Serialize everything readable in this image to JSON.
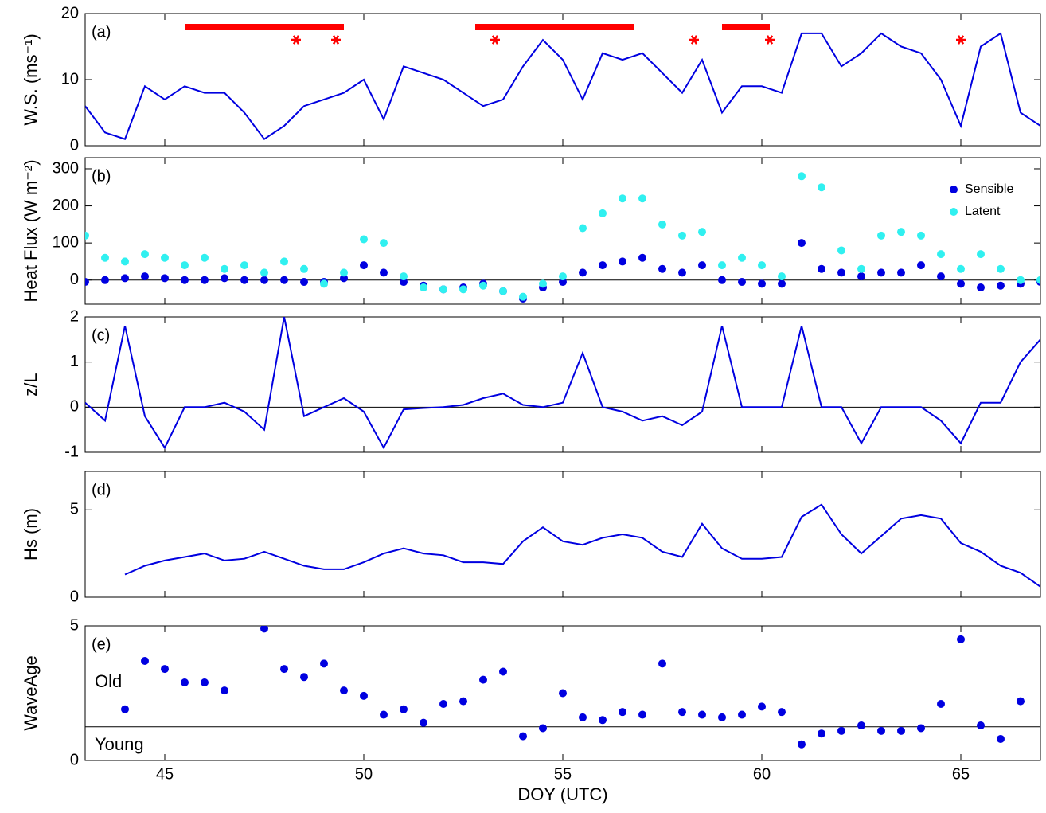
{
  "chart_data": [
    {
      "type": "line",
      "panel_label": "(a)",
      "y_label": "W.S. (ms⁻¹)",
      "xlim": [
        43,
        67
      ],
      "xticks": [
        45,
        50,
        55,
        60,
        65
      ],
      "ylim": [
        0,
        20
      ],
      "yticks": [
        0,
        10,
        20
      ],
      "x": [
        43,
        43.5,
        44,
        44.5,
        45,
        45.5,
        46,
        46.5,
        47,
        47.5,
        48,
        48.5,
        49,
        49.5,
        50,
        50.5,
        51,
        51.5,
        52,
        52.5,
        53,
        53.5,
        54,
        54.5,
        55,
        55.5,
        56,
        56.5,
        57,
        57.5,
        58,
        58.5,
        59,
        59.5,
        60,
        60.5,
        61,
        61.5,
        62,
        62.5,
        63,
        63.5,
        64,
        64.5,
        65,
        65.5,
        66,
        66.5,
        67
      ],
      "series": [
        {
          "color": "#0000e0",
          "values": [
            6,
            2,
            1,
            9,
            7,
            9,
            8,
            8,
            5,
            1,
            3,
            6,
            7,
            8,
            10,
            4,
            12,
            11,
            10,
            8,
            6,
            7,
            12,
            16,
            13,
            7,
            14,
            13,
            14,
            11,
            8,
            13,
            5,
            9,
            9,
            8,
            17,
            17,
            12,
            14,
            17,
            15,
            14,
            10,
            3,
            15,
            17,
            5,
            3
          ]
        }
      ],
      "highlight_periods": [
        [
          45.5,
          49.5
        ],
        [
          52.8,
          56.8
        ],
        [
          59.0,
          60.2
        ]
      ],
      "highlight_color": "#ff0000",
      "event_markers": [
        48.3,
        49.3,
        53.3,
        58.3,
        60.2,
        65.0
      ]
    },
    {
      "type": "scatter",
      "panel_label": "(b)",
      "y_label": "Heat Flux (W m⁻²)",
      "xlim": [
        43,
        67
      ],
      "xticks": [
        45,
        50,
        55,
        60,
        65
      ],
      "ylim": [
        -65,
        330
      ],
      "yticks": [
        0,
        100,
        200,
        300
      ],
      "reference_line": 0,
      "legend": "upper right",
      "x": [
        43,
        43.5,
        44,
        44.5,
        45,
        45.5,
        46,
        46.5,
        47,
        47.5,
        48,
        48.5,
        49,
        49.5,
        50,
        50.5,
        51,
        51.5,
        52,
        52.5,
        53,
        53.5,
        54,
        54.5,
        55,
        55.5,
        56,
        56.5,
        57,
        57.5,
        58,
        58.5,
        59,
        59.5,
        60,
        60.5,
        61,
        61.5,
        62,
        62.5,
        63,
        63.5,
        64,
        64.5,
        65,
        65.5,
        66,
        66.5,
        67
      ],
      "series": [
        {
          "name": "Sensible",
          "color": "#0000e0",
          "values": [
            -5,
            0,
            5,
            10,
            5,
            0,
            0,
            5,
            0,
            0,
            0,
            -5,
            -5,
            5,
            40,
            20,
            -5,
            -15,
            -25,
            -20,
            -10,
            -30,
            -50,
            -20,
            -5,
            20,
            40,
            50,
            60,
            30,
            20,
            40,
            0,
            -5,
            -10,
            -10,
            100,
            30,
            20,
            10,
            20,
            20,
            40,
            10,
            -10,
            -20,
            -15,
            -10,
            -5
          ]
        },
        {
          "name": "Latent",
          "color": "#30f0f0",
          "values": [
            120,
            60,
            50,
            70,
            60,
            40,
            60,
            30,
            40,
            20,
            50,
            30,
            -10,
            20,
            110,
            100,
            10,
            -20,
            -25,
            -25,
            -15,
            -30,
            -45,
            -10,
            10,
            140,
            180,
            220,
            220,
            150,
            120,
            130,
            40,
            60,
            40,
            10,
            280,
            250,
            80,
            30,
            120,
            130,
            120,
            70,
            30,
            70,
            30,
            0,
            0
          ]
        }
      ]
    },
    {
      "type": "line",
      "panel_label": "(c)",
      "y_label": "z/L",
      "xlim": [
        43,
        67
      ],
      "xticks": [
        45,
        50,
        55,
        60,
        65
      ],
      "ylim": [
        -1,
        2
      ],
      "yticks": [
        -1,
        0,
        1,
        2
      ],
      "reference_line": 0,
      "x": [
        43,
        43.5,
        44,
        44.5,
        45,
        45.5,
        46,
        46.5,
        47,
        47.5,
        48,
        48.5,
        49,
        49.5,
        50,
        50.5,
        51,
        51.5,
        52,
        52.5,
        53,
        53.5,
        54,
        54.5,
        55,
        55.5,
        56,
        56.5,
        57,
        57.5,
        58,
        58.5,
        59,
        59.5,
        60,
        60.5,
        61,
        61.5,
        62,
        62.5,
        63,
        63.5,
        64,
        64.5,
        65,
        65.5,
        66,
        66.5,
        67
      ],
      "series": [
        {
          "color": "#0000e0",
          "values": [
            0.1,
            -0.3,
            1.8,
            -0.2,
            -0.9,
            0,
            0,
            0.1,
            -0.1,
            -0.5,
            2,
            -0.2,
            0,
            0.2,
            -0.1,
            -0.9,
            -0.05,
            -0.02,
            0,
            0.05,
            0.2,
            0.3,
            0.05,
            0,
            0.1,
            1.2,
            0,
            -0.1,
            -0.3,
            -0.2,
            -0.4,
            -0.1,
            1.8,
            0,
            0,
            0,
            1.8,
            0,
            0,
            -0.8,
            0,
            0,
            0,
            -0.3,
            -0.8,
            0.1,
            0.1,
            1,
            1.5
          ]
        }
      ]
    },
    {
      "type": "line",
      "panel_label": "(d)",
      "y_label": "Hs (m)",
      "xlim": [
        43,
        67
      ],
      "xticks": [
        45,
        50,
        55,
        60,
        65
      ],
      "ylim": [
        0,
        7.2
      ],
      "yticks": [
        0,
        5
      ],
      "x": [
        44,
        44.5,
        45,
        45.5,
        46,
        46.5,
        47,
        47.5,
        48,
        48.5,
        49,
        49.5,
        50,
        50.5,
        51,
        51.5,
        52,
        52.5,
        53,
        53.5,
        54,
        54.5,
        55,
        55.5,
        56,
        56.5,
        57,
        57.5,
        58,
        58.5,
        59,
        59.5,
        60,
        60.5,
        61,
        61.5,
        62,
        62.5,
        63,
        63.5,
        64,
        64.5,
        65,
        65.5,
        66,
        66.5,
        67
      ],
      "series": [
        {
          "color": "#0000e0",
          "values": [
            1.3,
            1.8,
            2.1,
            2.3,
            2.5,
            2.1,
            2.2,
            2.6,
            2.2,
            1.8,
            1.6,
            1.6,
            2.0,
            2.5,
            2.8,
            2.5,
            2.4,
            2.0,
            2.0,
            1.9,
            3.2,
            4.0,
            3.2,
            3.0,
            3.4,
            3.6,
            3.4,
            2.6,
            2.3,
            4.2,
            2.8,
            2.2,
            2.2,
            2.3,
            4.6,
            5.3,
            3.6,
            2.5,
            3.5,
            4.5,
            4.7,
            4.5,
            3.1,
            2.6,
            1.8,
            1.4,
            0.6
          ]
        }
      ]
    },
    {
      "type": "scatter",
      "panel_label": "(e)",
      "y_label": "WaveAge",
      "x_label": "DOY (UTC)",
      "xlim": [
        43,
        67
      ],
      "xticks": [
        45,
        50,
        55,
        60,
        65
      ],
      "ylim": [
        0,
        5
      ],
      "yticks": [
        0,
        5
      ],
      "reference_line": 1.25,
      "annotations": [
        "Old",
        "Young"
      ],
      "x": [
        44,
        44.5,
        45,
        45.5,
        46,
        46.5,
        47,
        47.5,
        48,
        48.5,
        49,
        49.5,
        50,
        50.5,
        51,
        51.5,
        52,
        52.5,
        53,
        53.5,
        54,
        54.5,
        55,
        55.5,
        56,
        56.5,
        57,
        57.5,
        58,
        58.5,
        59,
        59.5,
        60,
        60.5,
        61,
        61.5,
        62,
        62.5,
        63,
        63.5,
        64,
        64.5,
        65,
        65.5,
        66,
        66.5
      ],
      "series": [
        {
          "color": "#0000e0",
          "values": [
            1.9,
            3.7,
            3.4,
            2.9,
            2.9,
            2.6,
            null,
            4.9,
            3.4,
            3.1,
            3.6,
            2.6,
            2.4,
            1.7,
            1.9,
            1.4,
            2.1,
            2.2,
            3.0,
            3.3,
            0.9,
            1.2,
            2.5,
            1.6,
            1.5,
            1.8,
            1.7,
            3.6,
            1.8,
            1.7,
            1.6,
            1.7,
            2.0,
            1.8,
            0.6,
            1.0,
            1.1,
            1.3,
            1.1,
            1.1,
            1.2,
            2.1,
            4.5,
            1.3,
            0.8,
            2.2
          ]
        }
      ]
    }
  ]
}
